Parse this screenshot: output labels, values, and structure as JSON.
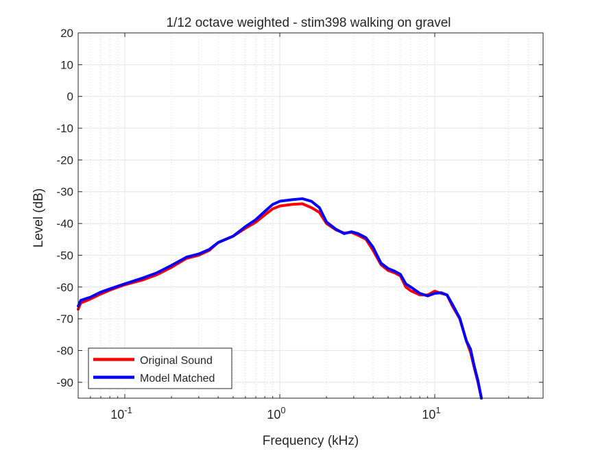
{
  "chart_data": {
    "type": "line",
    "title": "1/12 octave weighted - stim398 walking on gravel",
    "xlabel": "Frequency (kHz)",
    "ylabel": "Level (dB)",
    "x_scale": "log",
    "xlim": [
      0.05,
      50
    ],
    "ylim": [
      -95,
      20
    ],
    "y_ticks": [
      20,
      10,
      0,
      -10,
      -20,
      -30,
      -40,
      -50,
      -60,
      -70,
      -80,
      -90
    ],
    "x_ticks": [
      {
        "value": 0.1,
        "base": "10",
        "exp": "-1"
      },
      {
        "value": 1,
        "base": "10",
        "exp": "0"
      },
      {
        "value": 10,
        "base": "10",
        "exp": "1"
      }
    ],
    "grid": true,
    "minor_grid": true,
    "legend_position": "bottom-left",
    "series": [
      {
        "name": "Original Sound",
        "color": "#ff0000",
        "points": [
          [
            0.05,
            -67
          ],
          [
            0.052,
            -65
          ],
          [
            0.06,
            -63.8
          ],
          [
            0.07,
            -62.2
          ],
          [
            0.08,
            -61
          ],
          [
            0.1,
            -59.3
          ],
          [
            0.13,
            -57.8
          ],
          [
            0.16,
            -56.2
          ],
          [
            0.2,
            -53.8
          ],
          [
            0.25,
            -51
          ],
          [
            0.3,
            -50
          ],
          [
            0.35,
            -48.5
          ],
          [
            0.4,
            -46
          ],
          [
            0.5,
            -44
          ],
          [
            0.6,
            -41.5
          ],
          [
            0.7,
            -39.6
          ],
          [
            0.8,
            -37.3
          ],
          [
            0.9,
            -35.4
          ],
          [
            1.0,
            -34.5
          ],
          [
            1.2,
            -34
          ],
          [
            1.4,
            -33.8
          ],
          [
            1.6,
            -35
          ],
          [
            1.8,
            -36.5
          ],
          [
            2.0,
            -40
          ],
          [
            2.3,
            -42
          ],
          [
            2.6,
            -43
          ],
          [
            2.9,
            -42.8
          ],
          [
            3.2,
            -43.7
          ],
          [
            3.6,
            -45
          ],
          [
            4.0,
            -48.5
          ],
          [
            4.5,
            -53
          ],
          [
            5.0,
            -54.8
          ],
          [
            5.5,
            -55.5
          ],
          [
            6.0,
            -56.5
          ],
          [
            6.5,
            -60
          ],
          [
            7.0,
            -61.2
          ],
          [
            8.0,
            -62.5
          ],
          [
            9.0,
            -62.5
          ],
          [
            10.0,
            -61.3
          ],
          [
            11.0,
            -62
          ],
          [
            12.0,
            -62.5
          ],
          [
            13.0,
            -66
          ],
          [
            14.5,
            -70
          ],
          [
            16.0,
            -77
          ],
          [
            17.0,
            -80.5
          ],
          [
            18.0,
            -85.5
          ],
          [
            19.0,
            -90
          ],
          [
            20.0,
            -95
          ]
        ]
      },
      {
        "name": "Model Matched",
        "color": "#0000ff",
        "points": [
          [
            0.05,
            -66
          ],
          [
            0.052,
            -64.2
          ],
          [
            0.06,
            -63.2
          ],
          [
            0.07,
            -61.6
          ],
          [
            0.08,
            -60.6
          ],
          [
            0.1,
            -59
          ],
          [
            0.13,
            -57.2
          ],
          [
            0.16,
            -55.6
          ],
          [
            0.2,
            -53.2
          ],
          [
            0.25,
            -50.6
          ],
          [
            0.3,
            -49.6
          ],
          [
            0.35,
            -48.2
          ],
          [
            0.4,
            -46
          ],
          [
            0.5,
            -44
          ],
          [
            0.6,
            -41
          ],
          [
            0.7,
            -38.8
          ],
          [
            0.8,
            -36.2
          ],
          [
            0.9,
            -34
          ],
          [
            1.0,
            -33
          ],
          [
            1.2,
            -32.5
          ],
          [
            1.4,
            -32.2
          ],
          [
            1.6,
            -33
          ],
          [
            1.8,
            -35
          ],
          [
            2.0,
            -39.5
          ],
          [
            2.3,
            -41.8
          ],
          [
            2.6,
            -43.2
          ],
          [
            2.9,
            -42.6
          ],
          [
            3.2,
            -43.2
          ],
          [
            3.6,
            -44.5
          ],
          [
            4.0,
            -47.5
          ],
          [
            4.5,
            -52.5
          ],
          [
            5.0,
            -54.2
          ],
          [
            5.5,
            -55
          ],
          [
            6.0,
            -56
          ],
          [
            6.5,
            -59
          ],
          [
            7.0,
            -60
          ],
          [
            8.0,
            -62
          ],
          [
            9.0,
            -62.8
          ],
          [
            10.0,
            -62
          ],
          [
            11.0,
            -61.8
          ],
          [
            12.0,
            -62.5
          ],
          [
            13.0,
            -65.5
          ],
          [
            14.5,
            -69.8
          ],
          [
            16.0,
            -77
          ],
          [
            17.0,
            -79.5
          ],
          [
            18.0,
            -85
          ],
          [
            19.0,
            -89.5
          ],
          [
            20.0,
            -95
          ]
        ]
      }
    ]
  }
}
